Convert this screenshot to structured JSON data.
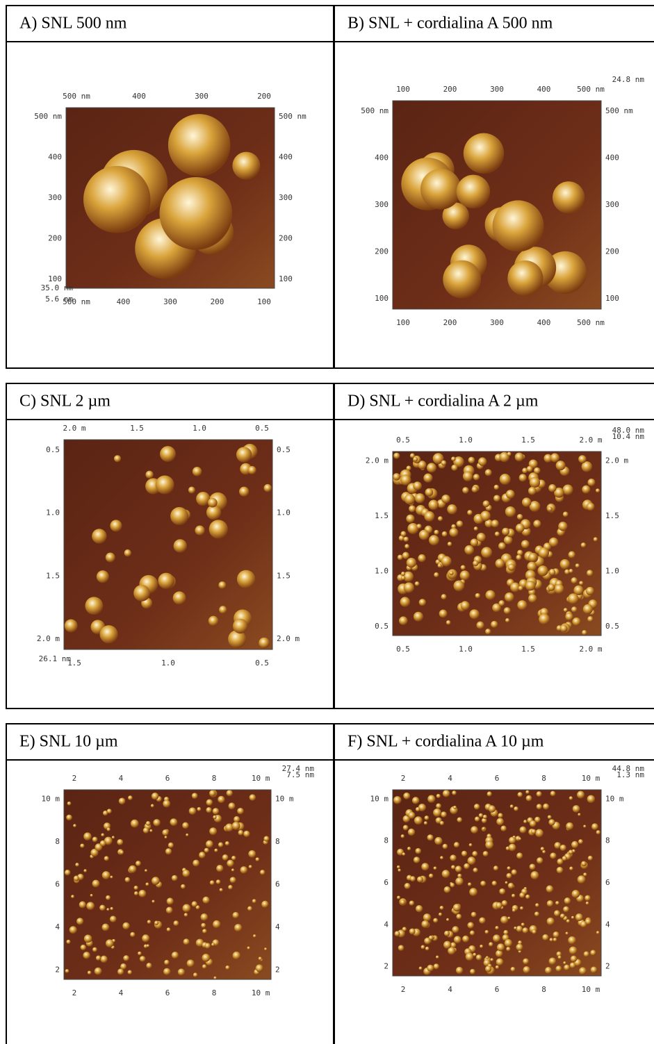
{
  "panels": [
    {
      "title": "A) SNL 500 nm",
      "top": [
        "500 nm",
        "400",
        "300",
        "200"
      ],
      "left": [
        "500 nm",
        "400",
        "300",
        "200",
        "100"
      ],
      "right": [
        "500 nm",
        "400",
        "300",
        "200",
        "100"
      ],
      "bottom": [
        "500 nm",
        "400",
        "300",
        "200",
        "100"
      ],
      "z": [
        "35.0 nm",
        "5.6 nm"
      ]
    },
    {
      "title": "B) SNL + cordialina A 500 nm",
      "top": [
        "100",
        "200",
        "300",
        "400",
        "500 nm"
      ],
      "left": [
        "500 nm",
        "400",
        "300",
        "200",
        "100"
      ],
      "right": [
        "500 nm",
        "400",
        "300",
        "200",
        "100"
      ],
      "bottom": [
        "100",
        "200",
        "300",
        "400",
        "500 nm"
      ],
      "z": [
        "24.8 nm"
      ]
    },
    {
      "title": "C) SNL 2 µm",
      "top": [
        "2.0 m",
        "1.5",
        "1.0",
        "0.5"
      ],
      "left": [
        "0.5",
        "1.0",
        "1.5",
        "2.0 m"
      ],
      "right": [
        "0.5",
        "1.0",
        "1.5",
        "2.0 m"
      ],
      "bottom": [
        "1.5",
        "1.0",
        "0.5"
      ],
      "z": [
        "26.1 nm"
      ]
    },
    {
      "title": "D) SNL + cordialina A 2 µm",
      "top": [
        "0.5",
        "1.0",
        "1.5",
        "2.0 m"
      ],
      "left": [
        "2.0 m",
        "1.5",
        "1.0",
        "0.5"
      ],
      "right": [
        "2.0 m",
        "1.5",
        "1.0",
        "0.5"
      ],
      "bottom": [
        "0.5",
        "1.0",
        "1.5",
        "2.0 m"
      ],
      "z": [
        "48.0 nm",
        "10.4 nm"
      ]
    },
    {
      "title": "E) SNL 10 µm",
      "top": [
        "2",
        "4",
        "6",
        "8",
        "10 m"
      ],
      "left": [
        "10 m",
        "8",
        "6",
        "4",
        "2"
      ],
      "right": [
        "10 m",
        "8",
        "6",
        "4",
        "2"
      ],
      "bottom": [
        "2",
        "4",
        "6",
        "8",
        "10 m"
      ],
      "z": [
        "27.4 nm",
        "7.5 nm"
      ]
    },
    {
      "title": "F) SNL + cordialina A 10 µm",
      "top": [
        "2",
        "4",
        "6",
        "8",
        "10 m"
      ],
      "left": [
        "10 m",
        "8",
        "6",
        "4",
        "2"
      ],
      "right": [
        "10 m",
        "8",
        "6",
        "4",
        "2"
      ],
      "bottom": [
        "2",
        "4",
        "6",
        "8",
        "10 m"
      ],
      "z": [
        "44.8 nm",
        "1.3 nm"
      ]
    }
  ]
}
